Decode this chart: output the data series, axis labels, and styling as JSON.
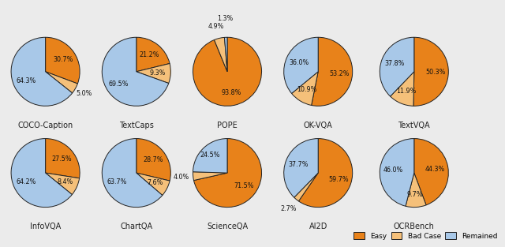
{
  "charts": [
    {
      "title": "COCO-Caption",
      "slices": [
        30.7,
        5.0,
        64.3
      ],
      "colors": [
        "#E8821A",
        "#F5C07A",
        "#A8C8E8"
      ],
      "labels": [
        "30.7%",
        "5.0%",
        "64.3%"
      ],
      "label_r": [
        0.62,
        1.3,
        0.62
      ],
      "startangle": 90
    },
    {
      "title": "TextCaps",
      "slices": [
        21.2,
        9.3,
        69.5
      ],
      "colors": [
        "#E8821A",
        "#F5C07A",
        "#A8C8E8"
      ],
      "labels": [
        "21.2%",
        "9.3%",
        "69.5%"
      ],
      "label_r": [
        0.62,
        0.62,
        0.62
      ],
      "startangle": 90
    },
    {
      "title": "POPE",
      "slices": [
        93.8,
        4.9,
        1.3
      ],
      "colors": [
        "#E8821A",
        "#F5C07A",
        "#A8C8E8"
      ],
      "labels": [
        "93.8%",
        "4.9%",
        "1.3%"
      ],
      "label_r": [
        0.62,
        1.35,
        1.55
      ],
      "startangle": 90
    },
    {
      "title": "OK-VQA",
      "slices": [
        53.2,
        10.9,
        36.0
      ],
      "colors": [
        "#E8821A",
        "#F5C07A",
        "#A8C8E8"
      ],
      "labels": [
        "53.2%",
        "10.9%",
        "36.0%"
      ],
      "label_r": [
        0.62,
        0.62,
        0.62
      ],
      "startangle": 90
    },
    {
      "title": "TextVQA",
      "slices": [
        50.3,
        11.9,
        37.8
      ],
      "colors": [
        "#E8821A",
        "#F5C07A",
        "#A8C8E8"
      ],
      "labels": [
        "50.3%",
        "11.9%",
        "37.8%"
      ],
      "label_r": [
        0.62,
        0.62,
        0.62
      ],
      "startangle": 90
    },
    {
      "title": "InfoVQA",
      "slices": [
        27.5,
        8.4,
        64.2
      ],
      "colors": [
        "#E8821A",
        "#F5C07A",
        "#A8C8E8"
      ],
      "labels": [
        "27.5%",
        "8.4%",
        "64.2%"
      ],
      "label_r": [
        0.62,
        0.62,
        0.62
      ],
      "startangle": 90
    },
    {
      "title": "ChartQA",
      "slices": [
        28.7,
        7.6,
        63.7
      ],
      "colors": [
        "#E8821A",
        "#F5C07A",
        "#A8C8E8"
      ],
      "labels": [
        "28.7%",
        "7.6%",
        "63.7%"
      ],
      "label_r": [
        0.62,
        0.62,
        0.62
      ],
      "startangle": 90
    },
    {
      "title": "ScienceQA",
      "slices": [
        71.5,
        4.0,
        24.5
      ],
      "colors": [
        "#E8821A",
        "#F5C07A",
        "#A8C8E8"
      ],
      "labels": [
        "71.5%",
        "4.0%",
        "24.5%"
      ],
      "label_r": [
        0.62,
        1.35,
        0.72
      ],
      "startangle": 90
    },
    {
      "title": "AI2D",
      "slices": [
        59.7,
        2.7,
        37.7
      ],
      "colors": [
        "#E8821A",
        "#F5C07A",
        "#A8C8E8"
      ],
      "labels": [
        "59.7%",
        "2.7%",
        "37.7%"
      ],
      "label_r": [
        0.62,
        1.35,
        0.62
      ],
      "startangle": 90
    },
    {
      "title": "OCRBench",
      "slices": [
        44.3,
        9.7,
        46.0
      ],
      "colors": [
        "#E8821A",
        "#F5C07A",
        "#A8C8E8"
      ],
      "labels": [
        "44.3%",
        "9.7%",
        "46.0%"
      ],
      "label_r": [
        0.62,
        0.62,
        0.62
      ],
      "startangle": 90
    }
  ],
  "legend_labels": [
    "Easy",
    "Bad Case",
    "Remained"
  ],
  "legend_colors": [
    "#E8821A",
    "#F5C07A",
    "#A8C8E8"
  ],
  "background_color": "#EBEBEB",
  "edge_color": "#222222",
  "title_fontsize": 7.0,
  "label_fontsize": 5.8
}
